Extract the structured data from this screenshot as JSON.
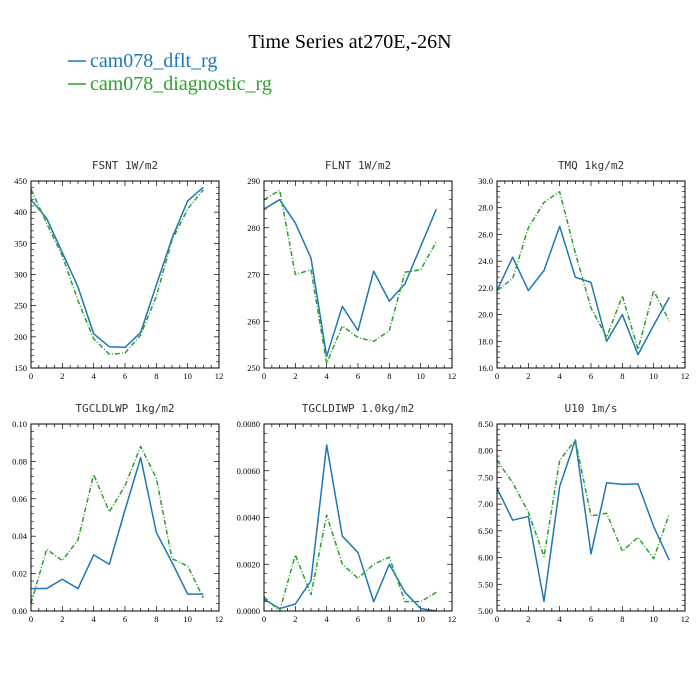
{
  "figure": {
    "title": "Time Series at270E,-26N",
    "legend": [
      {
        "label": "cam078_dflt_rg",
        "color": "#1f77b4",
        "dash": "solid"
      },
      {
        "label": "cam078_diagnostic_rg",
        "color": "#2ca02c",
        "dash": "dashed"
      }
    ]
  },
  "chart_data": [
    {
      "type": "line",
      "title": "FSNT  1W/m2",
      "xlim": [
        0,
        12
      ],
      "ylim": [
        150,
        450
      ],
      "xticks": [
        0,
        2,
        4,
        6,
        8,
        10,
        12
      ],
      "yticks": [
        150,
        200,
        250,
        300,
        350,
        400,
        450
      ],
      "ytick_labels": [
        "150",
        "200",
        "250",
        "300",
        "350",
        "400",
        "450"
      ],
      "x": [
        0,
        1,
        2,
        3,
        4,
        5,
        6,
        7,
        8,
        9,
        10,
        11
      ],
      "series": [
        {
          "name": "cam078_dflt_rg",
          "values": [
            420,
            390,
            335,
            280,
            205,
            184,
            183,
            207,
            283,
            358,
            418,
            440
          ]
        },
        {
          "name": "cam078_diagnostic_rg",
          "values": [
            437,
            382,
            330,
            258,
            197,
            172,
            174,
            203,
            265,
            355,
            405,
            436
          ]
        }
      ]
    },
    {
      "type": "line",
      "title": "FLNT  1W/m2",
      "xlim": [
        0,
        12
      ],
      "ylim": [
        250,
        290
      ],
      "xticks": [
        0,
        2,
        4,
        6,
        8,
        10,
        12
      ],
      "yticks": [
        250,
        260,
        270,
        280,
        290
      ],
      "ytick_labels": [
        "250",
        "260",
        "270",
        "280",
        "290"
      ],
      "x": [
        0,
        1,
        2,
        3,
        4,
        5,
        6,
        7,
        8,
        9,
        10,
        11
      ],
      "series": [
        {
          "name": "cam078_dflt_rg",
          "values": [
            284,
            286,
            281,
            273.5,
            252.5,
            263.2,
            258,
            270.7,
            264.3,
            268,
            276,
            284
          ]
        },
        {
          "name": "cam078_diagnostic_rg",
          "values": [
            286,
            288,
            270,
            271,
            251,
            259,
            256.5,
            255.7,
            258,
            270.5,
            271,
            277
          ]
        }
      ]
    },
    {
      "type": "line",
      "title": "TMQ  1kg/m2",
      "xlim": [
        0,
        12
      ],
      "ylim": [
        16,
        30
      ],
      "xticks": [
        0,
        2,
        4,
        6,
        8,
        10,
        12
      ],
      "yticks": [
        16,
        18,
        20,
        22,
        24,
        26,
        28,
        30
      ],
      "ytick_labels": [
        "16.0",
        "18.0",
        "20.0",
        "22.0",
        "24.0",
        "26.0",
        "28.0",
        "30.0"
      ],
      "x": [
        0,
        1,
        2,
        3,
        4,
        5,
        6,
        7,
        8,
        9,
        10,
        11
      ],
      "series": [
        {
          "name": "cam078_dflt_rg",
          "values": [
            21.8,
            24.3,
            21.8,
            23.3,
            26.6,
            22.8,
            22.4,
            18.0,
            20.0,
            17.0,
            19.2,
            21.3
          ]
        },
        {
          "name": "cam078_diagnostic_rg",
          "values": [
            21.8,
            22.7,
            26.5,
            28.4,
            29.2,
            24.6,
            20.5,
            18.3,
            21.4,
            17.4,
            21.8,
            19.5
          ]
        }
      ]
    },
    {
      "type": "line",
      "title": "TGCLDLWP  1kg/m2",
      "xlim": [
        0,
        12
      ],
      "ylim": [
        0,
        0.1
      ],
      "xticks": [
        0,
        2,
        4,
        6,
        8,
        10,
        12
      ],
      "yticks": [
        0,
        0.02,
        0.04,
        0.06,
        0.08,
        0.1
      ],
      "ytick_labels": [
        "0.00",
        "0.02",
        "0.04",
        "0.06",
        "0.08",
        "0.10"
      ],
      "x": [
        0,
        1,
        2,
        3,
        4,
        5,
        6,
        7,
        8,
        9,
        10,
        11
      ],
      "series": [
        {
          "name": "cam078_dflt_rg",
          "values": [
            0.012,
            0.012,
            0.017,
            0.012,
            0.03,
            0.025,
            0.054,
            0.082,
            0.042,
            0.026,
            0.009,
            0.009
          ]
        },
        {
          "name": "cam078_diagnostic_rg",
          "values": [
            0.004,
            0.033,
            0.027,
            0.038,
            0.073,
            0.053,
            0.067,
            0.088,
            0.071,
            0.028,
            0.024,
            0.007
          ]
        }
      ]
    },
    {
      "type": "line",
      "title": "TGCLDIWP  1.0kg/m2",
      "xlim": [
        0,
        12
      ],
      "ylim": [
        0,
        0.008
      ],
      "xticks": [
        0,
        2,
        4,
        6,
        8,
        10,
        12
      ],
      "yticks": [
        0,
        0.002,
        0.004,
        0.006,
        0.008
      ],
      "ytick_labels": [
        "0.0000",
        "0.0020",
        "0.0040",
        "0.0060",
        "0.0080"
      ],
      "x": [
        0,
        1,
        2,
        3,
        4,
        5,
        6,
        7,
        8,
        9,
        10,
        11
      ],
      "series": [
        {
          "name": "cam078_dflt_rg",
          "values": [
            0.0005,
            0.0001,
            0.0003,
            0.0013,
            0.0071,
            0.0032,
            0.0025,
            0.0004,
            0.002,
            0.0008,
            0.0001,
            0.0
          ]
        },
        {
          "name": "cam078_diagnostic_rg",
          "values": [
            0.0006,
            0.0,
            0.0024,
            0.0007,
            0.0041,
            0.002,
            0.0014,
            0.002,
            0.0023,
            0.0004,
            0.0004,
            0.0008
          ]
        }
      ]
    },
    {
      "type": "line",
      "title": "U10  1m/s",
      "xlim": [
        0,
        12
      ],
      "ylim": [
        5,
        8.5
      ],
      "xticks": [
        0,
        2,
        4,
        6,
        8,
        10,
        12
      ],
      "yticks": [
        5,
        5.5,
        6,
        6.5,
        7,
        7.5,
        8,
        8.5
      ],
      "ytick_labels": [
        "5.00",
        "5.50",
        "6.00",
        "6.50",
        "7.00",
        "7.50",
        "8.00",
        "8.50"
      ],
      "x": [
        0,
        1,
        2,
        3,
        4,
        5,
        6,
        7,
        8,
        9,
        10,
        11
      ],
      "series": [
        {
          "name": "cam078_dflt_rg",
          "values": [
            7.3,
            6.7,
            6.77,
            5.18,
            7.33,
            8.2,
            6.07,
            7.4,
            7.37,
            7.38,
            6.58,
            5.95
          ]
        },
        {
          "name": "cam078_diagnostic_rg",
          "values": [
            7.82,
            7.4,
            6.85,
            6.02,
            7.82,
            8.2,
            6.78,
            6.83,
            6.12,
            6.38,
            5.98,
            6.82
          ]
        }
      ]
    }
  ]
}
